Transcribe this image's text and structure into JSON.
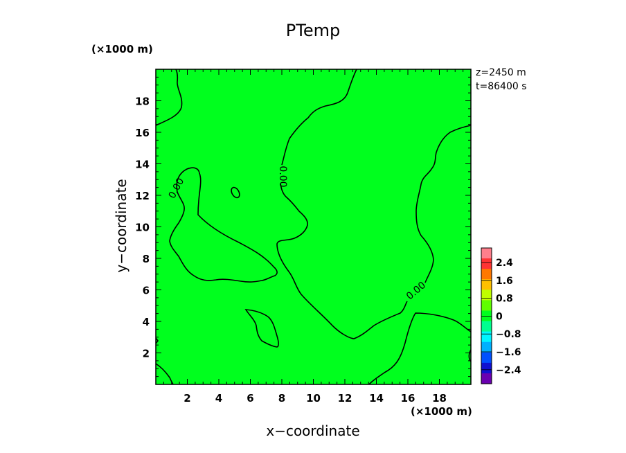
{
  "chart_data": {
    "type": "heatmap",
    "title": "PTemp",
    "xlabel": "x−coordinate",
    "ylabel": "y−coordinate",
    "x_unit": "(×1000 m)",
    "y_unit": "(×1000 m)",
    "xlim": [
      0,
      20
    ],
    "ylim": [
      0,
      20
    ],
    "xticks": [
      2,
      4,
      6,
      8,
      10,
      12,
      14,
      16,
      18
    ],
    "yticks": [
      2,
      4,
      6,
      8,
      10,
      12,
      14,
      16,
      18
    ],
    "z_info": "z=2450 m",
    "t_info": "t=86400 s",
    "field_color": "#00ff1e",
    "field_level": 0,
    "contour_level_label": "0.00",
    "colorbar": {
      "ticks": [
        "2.4",
        "1.6",
        "0.8",
        "0",
        "−0.8",
        "−1.6",
        "−2.4"
      ],
      "colors": [
        "#ff7f8c",
        "#ff3333",
        "#ff7800",
        "#ffc000",
        "#bfff00",
        "#60ff00",
        "#00ff1e",
        "#00ff90",
        "#00f5ff",
        "#00b0ff",
        "#0050ff",
        "#1010d0",
        "#6a00b0"
      ]
    }
  }
}
